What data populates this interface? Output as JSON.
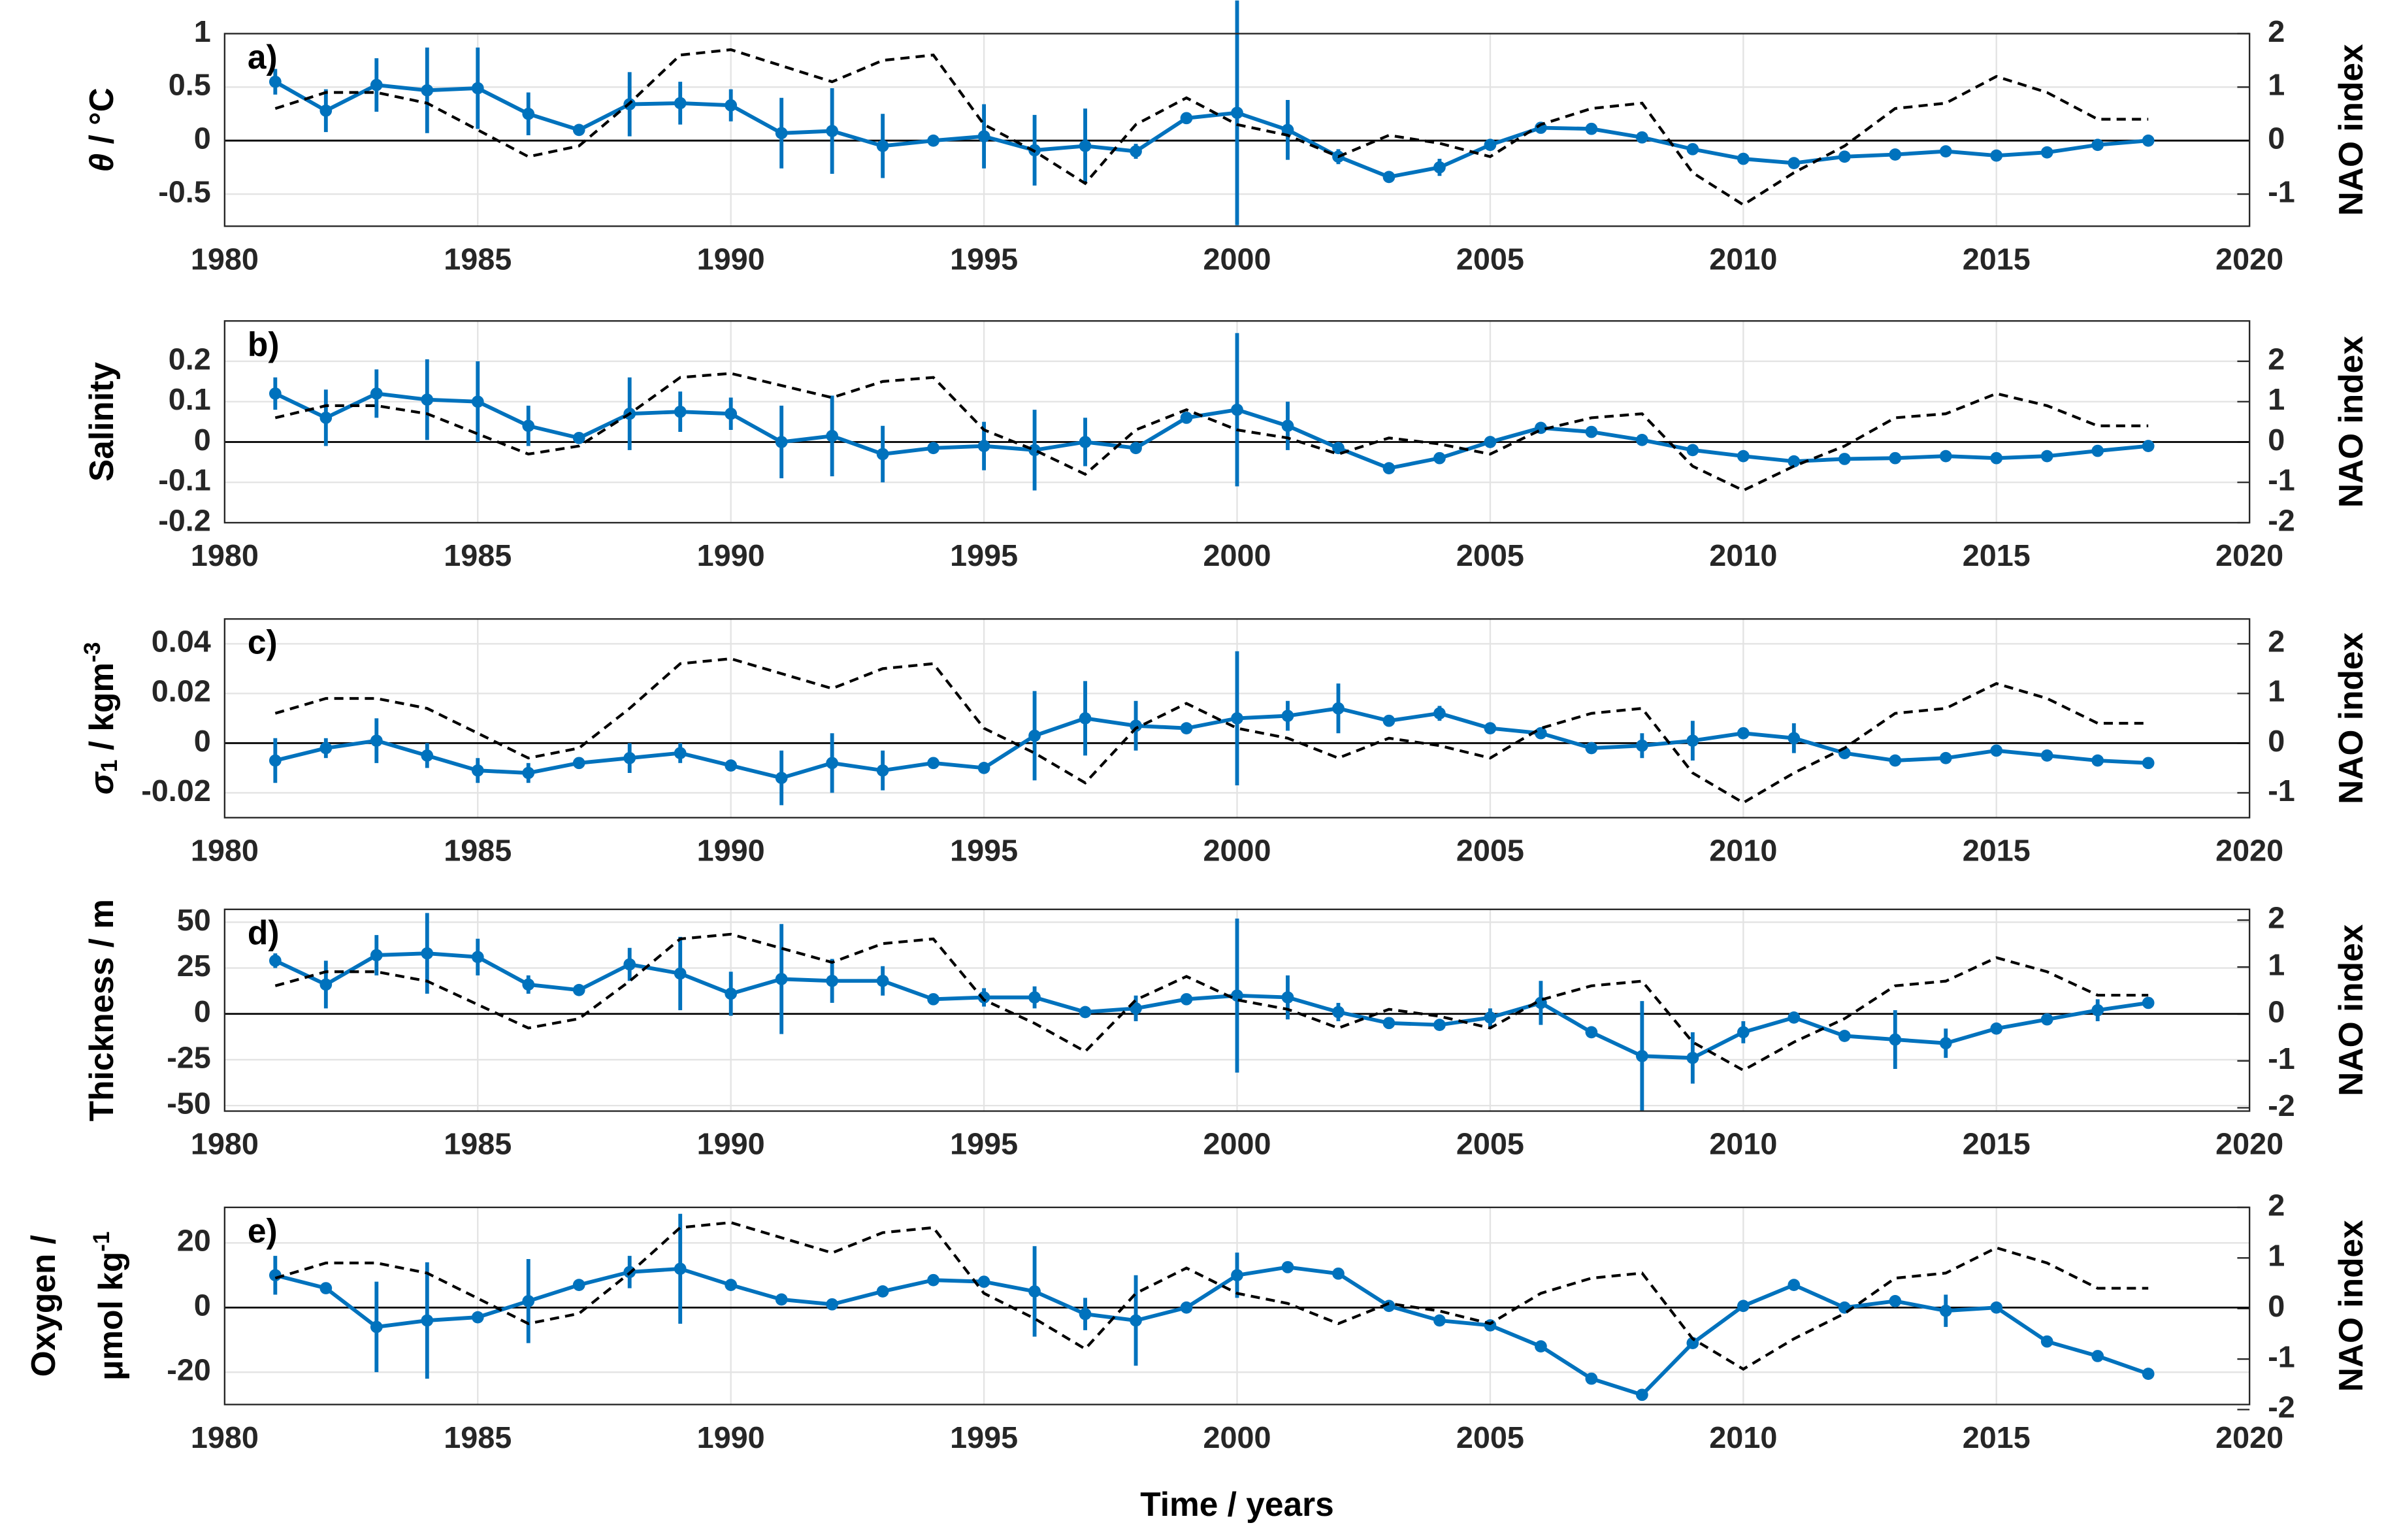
{
  "chart_data": [
    {
      "type": "line",
      "label": "a)",
      "ylabel": [
        [
          "θ",
          " / °C"
        ]
      ],
      "y2label": "NAO index",
      "x": [
        1981,
        1982,
        1983,
        1984,
        1985,
        1986,
        1987,
        1988,
        1989,
        1990,
        1991,
        1992,
        1993,
        1994,
        1995,
        1996,
        1997,
        1998,
        1999,
        2000,
        2001,
        2002,
        2003,
        2004,
        2005,
        2006,
        2007,
        2008,
        2009,
        2010,
        2011,
        2012,
        2013,
        2014,
        2015,
        2016,
        2017,
        2018
      ],
      "xlim": [
        1980,
        2020
      ],
      "xticks": [
        1980,
        1985,
        1990,
        1995,
        2000,
        2005,
        2010,
        2015,
        2020
      ],
      "ylim": [
        -0.8,
        1
      ],
      "yticks": [
        -0.5,
        0,
        0.5,
        1
      ],
      "y2lim": [
        -1.6,
        2
      ],
      "y2ticks": [
        -1,
        0,
        1,
        2
      ],
      "grid": true,
      "series": [
        {
          "color": "#0072bd",
          "markers": true,
          "values": [
            0.55,
            0.28,
            0.52,
            0.47,
            0.49,
            0.25,
            0.1,
            0.34,
            0.35,
            0.33,
            0.07,
            0.09,
            -0.05,
            0,
            0.04,
            -0.09,
            -0.05,
            -0.1,
            0.21,
            0.26,
            0.1,
            -0.15,
            -0.34,
            -0.25,
            -0.04,
            0.12,
            0.11,
            0.03,
            -0.08,
            -0.17,
            -0.21,
            -0.15,
            -0.13,
            -0.1,
            -0.14,
            -0.11,
            -0.04,
            0
          ],
          "errors": [
            0.12,
            0.2,
            0.25,
            0.4,
            0.38,
            0.2,
            null,
            0.3,
            0.2,
            0.15,
            0.33,
            0.4,
            0.3,
            null,
            0.3,
            0.33,
            0.35,
            0.07,
            null,
            1.05,
            0.28,
            0.07,
            null,
            0.08,
            null,
            null,
            null,
            null,
            null,
            null,
            null,
            null,
            null,
            null,
            null,
            null,
            null,
            null
          ]
        },
        {
          "color": "#000000",
          "axis": "y2",
          "dash": true,
          "values": [
            0.6,
            0.9,
            0.9,
            0.7,
            0.2,
            -0.3,
            -0.1,
            0.7,
            1.6,
            1.7,
            1.4,
            1.1,
            1.5,
            1.6,
            0.3,
            -0.2,
            -0.8,
            0.3,
            0.8,
            0.3,
            0.1,
            -0.3,
            0.1,
            -0.05,
            -0.3,
            0.3,
            0.6,
            0.7,
            -0.6,
            -1.2,
            -0.6,
            -0.1,
            0.6,
            0.7,
            1.2,
            0.9,
            0.4,
            0.4
          ]
        }
      ]
    },
    {
      "type": "line",
      "label": "b)",
      "ylabel": [
        [
          "Salinity"
        ]
      ],
      "y2label": "NAO index",
      "x": [
        1981,
        1982,
        1983,
        1984,
        1985,
        1986,
        1987,
        1988,
        1989,
        1990,
        1991,
        1992,
        1993,
        1994,
        1995,
        1996,
        1997,
        1998,
        1999,
        2000,
        2001,
        2002,
        2003,
        2004,
        2005,
        2006,
        2007,
        2008,
        2009,
        2010,
        2011,
        2012,
        2013,
        2014,
        2015,
        2016,
        2017,
        2018
      ],
      "xlim": [
        1980,
        2020
      ],
      "xticks": [
        1980,
        1985,
        1990,
        1995,
        2000,
        2005,
        2010,
        2015,
        2020
      ],
      "ylim": [
        -0.2,
        0.3
      ],
      "yticks": [
        -0.2,
        -0.1,
        0,
        0.1,
        0.2
      ],
      "y2lim": [
        -2,
        3
      ],
      "y2ticks": [
        -2,
        -1,
        0,
        1,
        2
      ],
      "grid": true,
      "series": [
        {
          "color": "#0072bd",
          "markers": true,
          "values": [
            0.12,
            0.06,
            0.12,
            0.105,
            0.1,
            0.04,
            0.01,
            0.07,
            0.075,
            0.07,
            0,
            0.015,
            -0.03,
            -0.015,
            -0.01,
            -0.02,
            0,
            -0.015,
            0.06,
            0.08,
            0.04,
            -0.015,
            -0.065,
            -0.04,
            0,
            0.035,
            0.025,
            0.005,
            -0.02,
            -0.035,
            -0.048,
            -0.042,
            -0.04,
            -0.035,
            -0.04,
            -0.035,
            -0.022,
            -0.01
          ],
          "errors": [
            0.04,
            0.07,
            0.06,
            0.1,
            0.1,
            0.05,
            null,
            0.09,
            0.05,
            0.04,
            0.09,
            0.1,
            0.07,
            null,
            0.06,
            0.1,
            0.06,
            null,
            null,
            0.19,
            0.06,
            null,
            null,
            null,
            null,
            null,
            null,
            null,
            null,
            null,
            null,
            null,
            null,
            null,
            null,
            null,
            null,
            null
          ]
        },
        {
          "color": "#000000",
          "axis": "y2",
          "dash": true,
          "values": [
            0.6,
            0.9,
            0.9,
            0.7,
            0.2,
            -0.3,
            -0.1,
            0.7,
            1.6,
            1.7,
            1.4,
            1.1,
            1.5,
            1.6,
            0.3,
            -0.2,
            -0.8,
            0.3,
            0.8,
            0.3,
            0.1,
            -0.3,
            0.1,
            -0.05,
            -0.3,
            0.3,
            0.6,
            0.7,
            -0.6,
            -1.2,
            -0.6,
            -0.1,
            0.6,
            0.7,
            1.2,
            0.9,
            0.4,
            0.4
          ]
        }
      ]
    },
    {
      "type": "line",
      "label": "c)",
      "ylabel": [
        [
          "σ",
          {
            "sub": "1"
          },
          " / kgm",
          {
            "sup": "-3"
          }
        ]
      ],
      "y2label": "NAO index",
      "x": [
        1981,
        1982,
        1983,
        1984,
        1985,
        1986,
        1987,
        1988,
        1989,
        1990,
        1991,
        1992,
        1993,
        1994,
        1995,
        1996,
        1997,
        1998,
        1999,
        2000,
        2001,
        2002,
        2003,
        2004,
        2005,
        2006,
        2007,
        2008,
        2009,
        2010,
        2011,
        2012,
        2013,
        2014,
        2015,
        2016,
        2017,
        2018
      ],
      "xlim": [
        1980,
        2020
      ],
      "xticks": [
        1980,
        1985,
        1990,
        1995,
        2000,
        2005,
        2010,
        2015,
        2020
      ],
      "ylim": [
        -0.03,
        0.05
      ],
      "yticks": [
        -0.02,
        0,
        0.02,
        0.04
      ],
      "y2lim": [
        -1.5,
        2.5
      ],
      "y2ticks": [
        -1,
        0,
        1,
        2
      ],
      "grid": true,
      "series": [
        {
          "color": "#0072bd",
          "markers": true,
          "values": [
            -0.007,
            -0.002,
            0.001,
            -0.005,
            -0.011,
            -0.012,
            -0.008,
            -0.006,
            -0.004,
            -0.009,
            -0.014,
            -0.008,
            -0.011,
            -0.008,
            -0.01,
            0.003,
            0.01,
            0.007,
            0.006,
            0.01,
            0.011,
            0.014,
            0.009,
            0.012,
            0.006,
            0.004,
            -0.002,
            -0.001,
            0.001,
            0.004,
            0.002,
            -0.004,
            -0.007,
            -0.006,
            -0.003,
            -0.005,
            -0.007,
            -0.008
          ],
          "errors": [
            0.009,
            0.004,
            0.009,
            0.005,
            0.005,
            0.004,
            null,
            0.006,
            0.004,
            null,
            0.011,
            0.012,
            0.008,
            null,
            null,
            0.018,
            0.015,
            0.01,
            null,
            0.027,
            0.006,
            0.01,
            null,
            0.003,
            null,
            null,
            null,
            0.005,
            0.008,
            null,
            0.006,
            null,
            null,
            null,
            null,
            null,
            null,
            null
          ]
        },
        {
          "color": "#000000",
          "axis": "y2",
          "dash": true,
          "values": [
            0.6,
            0.9,
            0.9,
            0.7,
            0.2,
            -0.3,
            -0.1,
            0.7,
            1.6,
            1.7,
            1.4,
            1.1,
            1.5,
            1.6,
            0.3,
            -0.2,
            -0.8,
            0.3,
            0.8,
            0.3,
            0.1,
            -0.3,
            0.1,
            -0.05,
            -0.3,
            0.3,
            0.6,
            0.7,
            -0.6,
            -1.2,
            -0.6,
            -0.1,
            0.6,
            0.7,
            1.2,
            0.9,
            0.4,
            0.4
          ]
        }
      ]
    },
    {
      "type": "line",
      "label": "d)",
      "ylabel": [
        [
          "Thickness / m"
        ]
      ],
      "y2label": "NAO index",
      "x": [
        1981,
        1982,
        1983,
        1984,
        1985,
        1986,
        1987,
        1988,
        1989,
        1990,
        1991,
        1992,
        1993,
        1994,
        1995,
        1996,
        1997,
        1998,
        1999,
        2000,
        2001,
        2002,
        2003,
        2004,
        2005,
        2006,
        2007,
        2008,
        2009,
        2010,
        2011,
        2012,
        2013,
        2014,
        2015,
        2016,
        2017,
        2018
      ],
      "xlim": [
        1980,
        2020
      ],
      "xticks": [
        1980,
        1985,
        1990,
        1995,
        2000,
        2005,
        2010,
        2015,
        2020
      ],
      "ylim": [
        -53,
        57
      ],
      "yticks": [
        -50,
        -25,
        0,
        25,
        50
      ],
      "y2lim": [
        -2.07,
        2.23
      ],
      "y2ticks": [
        -2,
        -1,
        0,
        1,
        2
      ],
      "grid": true,
      "series": [
        {
          "color": "#0072bd",
          "markers": true,
          "values": [
            29,
            16,
            32,
            33,
            31,
            16,
            13,
            27,
            22,
            11,
            19,
            18,
            18,
            8,
            9,
            9,
            1,
            3,
            8,
            10,
            9,
            1,
            -5,
            -6,
            -2,
            6,
            -10,
            -23,
            -24,
            -10,
            -2,
            -12,
            -14,
            -16,
            -8,
            -3,
            2,
            6
          ],
          "errors": [
            4,
            13,
            11,
            22,
            10,
            5,
            null,
            9,
            20,
            12,
            30,
            12,
            8,
            null,
            5,
            6,
            null,
            7,
            null,
            42,
            12,
            5,
            null,
            null,
            5,
            12,
            null,
            30,
            14,
            6,
            null,
            null,
            16,
            8,
            null,
            null,
            6,
            3
          ]
        },
        {
          "color": "#000000",
          "axis": "y2",
          "dash": true,
          "values": [
            0.6,
            0.9,
            0.9,
            0.7,
            0.2,
            -0.3,
            -0.1,
            0.7,
            1.6,
            1.7,
            1.4,
            1.1,
            1.5,
            1.6,
            0.3,
            -0.2,
            -0.8,
            0.3,
            0.8,
            0.3,
            0.1,
            -0.3,
            0.1,
            -0.05,
            -0.3,
            0.3,
            0.6,
            0.7,
            -0.6,
            -1.2,
            -0.6,
            -0.1,
            0.6,
            0.7,
            1.2,
            0.9,
            0.4,
            0.4
          ]
        }
      ]
    },
    {
      "type": "line",
      "label": "e)",
      "ylabel": [
        [
          "Oxygen /"
        ],
        [
          "μmol kg",
          {
            "sup": "-1"
          }
        ]
      ],
      "y2label": "NAO index",
      "xlabel": "Time / years",
      "x": [
        1981,
        1982,
        1983,
        1984,
        1985,
        1986,
        1987,
        1988,
        1989,
        1990,
        1991,
        1992,
        1993,
        1994,
        1995,
        1996,
        1997,
        1998,
        1999,
        2000,
        2001,
        2002,
        2003,
        2004,
        2005,
        2006,
        2007,
        2008,
        2009,
        2010,
        2011,
        2012,
        2013,
        2014,
        2015,
        2016,
        2017,
        2018
      ],
      "xlim": [
        1980,
        2020
      ],
      "xticks": [
        1980,
        1985,
        1990,
        1995,
        2000,
        2005,
        2010,
        2015,
        2020
      ],
      "ylim": [
        -30,
        31
      ],
      "yticks": [
        -20,
        0,
        20
      ],
      "y2lim": [
        -1.9,
        2
      ],
      "y2ticks": [
        -2,
        -1,
        0,
        1,
        2
      ],
      "grid": true,
      "series": [
        {
          "color": "#0072bd",
          "markers": true,
          "values": [
            10,
            6,
            -6,
            -4,
            -3,
            2,
            7,
            11,
            12,
            7,
            2.5,
            1,
            5,
            8.5,
            8,
            5,
            -2,
            -4,
            0,
            10,
            12.5,
            10.5,
            0.5,
            -4,
            -5.5,
            -12,
            -22,
            -27,
            -11,
            0.5,
            7,
            0,
            2,
            -1,
            0,
            -10.5,
            -15,
            -20.5
          ],
          "errors": [
            6,
            null,
            14,
            18,
            null,
            13,
            null,
            5,
            17,
            null,
            null,
            null,
            null,
            null,
            null,
            14,
            5,
            14,
            null,
            7,
            null,
            null,
            null,
            null,
            null,
            null,
            null,
            null,
            null,
            null,
            null,
            null,
            null,
            5,
            null,
            null,
            null,
            null
          ]
        },
        {
          "color": "#000000",
          "axis": "y2",
          "dash": true,
          "values": [
            0.6,
            0.9,
            0.9,
            0.7,
            0.2,
            -0.3,
            -0.1,
            0.7,
            1.6,
            1.7,
            1.4,
            1.1,
            1.5,
            1.6,
            0.3,
            -0.2,
            -0.8,
            0.3,
            0.8,
            0.3,
            0.1,
            -0.3,
            0.1,
            -0.05,
            -0.3,
            0.3,
            0.6,
            0.7,
            -0.6,
            -1.2,
            -0.6,
            -0.1,
            0.6,
            0.7,
            1.2,
            0.9,
            0.4,
            0.4
          ]
        }
      ]
    }
  ]
}
